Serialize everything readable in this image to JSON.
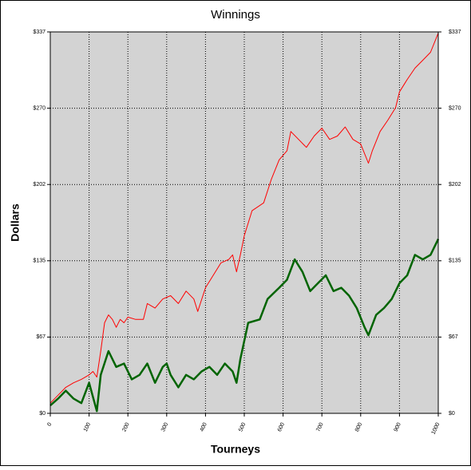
{
  "chart_data": {
    "type": "line",
    "title": "Winnings",
    "x_label": "Tourneys",
    "y_label": "Dollars",
    "xlim": [
      0,
      1000
    ],
    "xticks": [
      0,
      100,
      200,
      300,
      400,
      500,
      600,
      700,
      800,
      900,
      1000
    ],
    "ylim": [
      0,
      337
    ],
    "yticks": [
      {
        "value": 0,
        "label": "$0"
      },
      {
        "value": 67.4,
        "label": "$67"
      },
      {
        "value": 134.8,
        "label": "$135"
      },
      {
        "value": 202.2,
        "label": "$202"
      },
      {
        "value": 269.6,
        "label": "$270"
      },
      {
        "value": 337,
        "label": "$337"
      }
    ],
    "grid": true,
    "series": [
      {
        "color": "#ff0000",
        "width": 1,
        "x": [
          0,
          20,
          40,
          60,
          80,
          100,
          110,
          120,
          130,
          140,
          150,
          160,
          170,
          180,
          190,
          200,
          220,
          240,
          250,
          270,
          290,
          310,
          330,
          350,
          370,
          380,
          400,
          420,
          440,
          460,
          470,
          480,
          490,
          500,
          520,
          550,
          570,
          590,
          610,
          620,
          640,
          660,
          680,
          700,
          720,
          740,
          760,
          780,
          800,
          820,
          830,
          850,
          870,
          890,
          900,
          920,
          940,
          960,
          980,
          1000
        ],
        "values": [
          9,
          16,
          23,
          27,
          30,
          34,
          37,
          32,
          55,
          80,
          87,
          83,
          76,
          83,
          80,
          85,
          83,
          83,
          97,
          93,
          101,
          104,
          97,
          108,
          101,
          90,
          111,
          122,
          133,
          136,
          140,
          125,
          140,
          157,
          179,
          186,
          207,
          224,
          232,
          249,
          242,
          235,
          245,
          252,
          242,
          245,
          253,
          242,
          238,
          221,
          232,
          249,
          259,
          270,
          284,
          295,
          305,
          312,
          319,
          336
        ]
      },
      {
        "color": "#006400",
        "width": 2.5,
        "x": [
          0,
          20,
          40,
          60,
          80,
          100,
          120,
          130,
          150,
          170,
          190,
          210,
          230,
          250,
          270,
          290,
          300,
          310,
          330,
          350,
          370,
          390,
          410,
          430,
          450,
          470,
          480,
          490,
          510,
          540,
          560,
          590,
          610,
          630,
          650,
          670,
          690,
          710,
          730,
          750,
          770,
          790,
          810,
          820,
          840,
          860,
          880,
          900,
          920,
          940,
          960,
          980,
          1000
        ],
        "values": [
          7,
          13,
          20,
          13,
          9,
          27,
          2,
          34,
          55,
          41,
          44,
          30,
          34,
          44,
          27,
          41,
          44,
          34,
          23,
          34,
          30,
          37,
          41,
          34,
          44,
          37,
          27,
          48,
          80,
          83,
          101,
          111,
          118,
          136,
          125,
          108,
          115,
          122,
          108,
          111,
          104,
          93,
          76,
          69,
          87,
          93,
          101,
          115,
          122,
          140,
          136,
          140,
          154
        ]
      }
    ]
  }
}
